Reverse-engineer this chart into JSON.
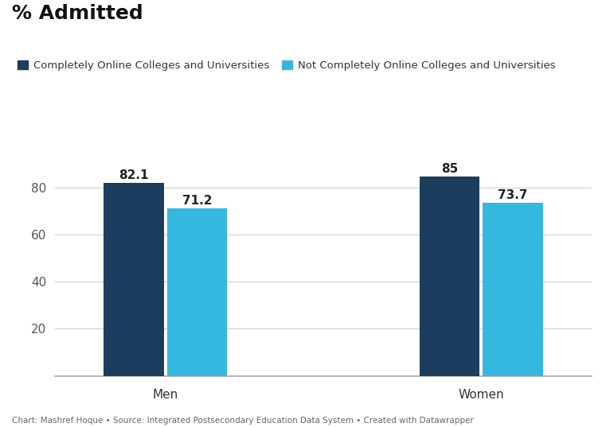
{
  "title": "% Admitted",
  "categories": [
    "Men",
    "Women"
  ],
  "series": [
    {
      "name": "Completely Online Colleges and Universities",
      "values": [
        82.1,
        85
      ],
      "color": "#1b3d5e"
    },
    {
      "name": "Not Completely Online Colleges and Universities",
      "values": [
        71.2,
        73.7
      ],
      "color": "#35b8e0"
    }
  ],
  "ylim": [
    0,
    100
  ],
  "yticks": [
    20,
    40,
    60,
    80
  ],
  "bar_width": 0.38,
  "group_centers": [
    1.0,
    3.0
  ],
  "background_color": "#ffffff",
  "plot_bg_color": "#ffffff",
  "grid_color": "#d0d0d0",
  "title_fontsize": 18,
  "legend_fontsize": 9.5,
  "tick_fontsize": 11,
  "label_fontsize": 11,
  "caption": "Chart: Mashref Hoque • Source: Integrated Postsecondary Education Data System • Created with Datawrapper"
}
